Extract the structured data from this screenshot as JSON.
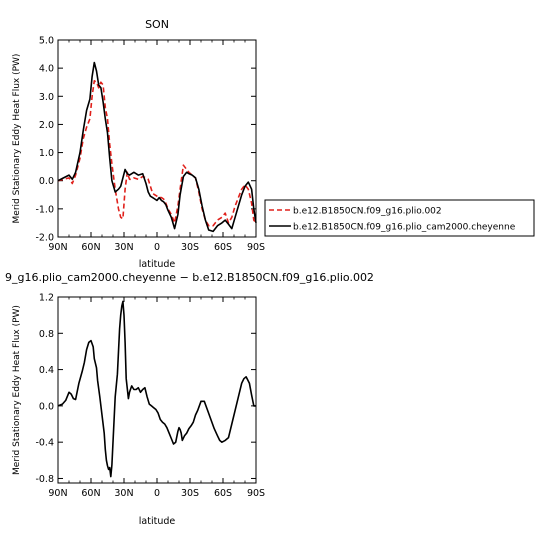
{
  "chart_data": [
    {
      "type": "line",
      "title": "SON",
      "xlabel": "latitude",
      "ylabel": "Merid Stationary Eddy Heat Flux (PW)",
      "xlim": [
        90,
        -90
      ],
      "ylim": [
        -2.0,
        5.0
      ],
      "xticks": [
        90,
        60,
        30,
        0,
        -30,
        -60,
        -90
      ],
      "xtick_labels": [
        "90N",
        "60N",
        "30N",
        "0",
        "30S",
        "60S",
        "90S"
      ],
      "yticks": [
        -2,
        -1,
        0,
        1,
        2,
        3,
        4,
        5
      ],
      "ytick_labels": [
        "-2.0",
        "-1.0",
        "0.0",
        "1.0",
        "2.0",
        "3.0",
        "4.0",
        "5.0"
      ],
      "legend_placement": "right",
      "series": [
        {
          "name": "b.e12.B1850CN.f09_g16.plio.002",
          "color": "#e0201b",
          "dash": "dashed",
          "x": [
            90,
            85,
            80,
            77,
            74,
            70,
            67,
            64,
            61,
            59,
            57,
            55,
            53,
            51,
            49,
            47,
            45,
            43,
            41,
            38,
            35,
            33,
            31,
            29,
            27,
            25,
            23,
            21,
            17,
            13,
            10,
            8,
            6,
            4,
            2,
            0,
            -2,
            -4,
            -6,
            -8,
            -10,
            -13,
            -16,
            -19,
            -21,
            -24,
            -27,
            -29,
            -32,
            -35,
            -38,
            -41,
            -44,
            -47,
            -51,
            -55,
            -59,
            -62,
            -65,
            -68,
            -71,
            -74,
            -77,
            -80,
            -83,
            -86,
            -88,
            -90
          ],
          "y": [
            0.0,
            0.05,
            0.1,
            -0.1,
            0.2,
            0.8,
            1.5,
            1.9,
            2.2,
            3.0,
            3.55,
            3.5,
            3.3,
            3.5,
            3.4,
            2.6,
            2.2,
            1.3,
            0.6,
            -0.3,
            -1.0,
            -1.3,
            -1.35,
            -0.3,
            0.3,
            0.05,
            0.05,
            0.1,
            0.05,
            0.15,
            0.1,
            0.05,
            -0.2,
            -0.45,
            -0.5,
            -0.55,
            -0.6,
            -0.6,
            -0.65,
            -0.8,
            -1.0,
            -1.2,
            -1.5,
            -0.9,
            -0.3,
            0.55,
            0.4,
            0.3,
            0.2,
            0.1,
            -0.4,
            -1.0,
            -1.4,
            -1.6,
            -1.6,
            -1.4,
            -1.3,
            -1.15,
            -1.5,
            -1.3,
            -0.9,
            -0.6,
            -0.3,
            -0.15,
            -0.3,
            -0.8,
            -1.4,
            -1.5
          ]
        },
        {
          "name": "b.e12.B1850CN.f09_g16.plio_cam2000.cheyenne",
          "color": "#000000",
          "dash": "solid",
          "x": [
            90,
            85,
            80,
            77,
            74,
            70,
            67,
            64,
            61,
            59,
            57,
            55,
            53,
            51,
            49,
            47,
            45,
            43,
            41,
            38,
            35,
            33,
            31,
            29,
            27,
            25,
            23,
            21,
            17,
            13,
            10,
            8,
            6,
            4,
            2,
            0,
            -2,
            -4,
            -6,
            -8,
            -10,
            -13,
            -16,
            -19,
            -21,
            -24,
            -27,
            -29,
            -32,
            -35,
            -38,
            -41,
            -44,
            -47,
            -51,
            -55,
            -59,
            -62,
            -65,
            -68,
            -71,
            -74,
            -77,
            -80,
            -83,
            -86,
            -88,
            -90
          ],
          "y": [
            0.0,
            0.1,
            0.2,
            0.05,
            0.3,
            1.0,
            1.8,
            2.5,
            2.9,
            3.7,
            4.2,
            3.9,
            3.4,
            3.3,
            2.8,
            2.2,
            1.7,
            0.8,
            0.0,
            -0.4,
            -0.3,
            -0.2,
            0.1,
            0.4,
            0.25,
            0.2,
            0.25,
            0.3,
            0.2,
            0.25,
            -0.1,
            -0.4,
            -0.55,
            -0.6,
            -0.65,
            -0.7,
            -0.6,
            -0.7,
            -0.75,
            -0.85,
            -1.05,
            -1.3,
            -1.7,
            -1.2,
            -0.5,
            0.15,
            0.3,
            0.25,
            0.2,
            0.1,
            -0.3,
            -0.9,
            -1.4,
            -1.75,
            -1.8,
            -1.6,
            -1.5,
            -1.4,
            -1.55,
            -1.7,
            -1.3,
            -0.9,
            -0.5,
            -0.2,
            -0.05,
            -0.3,
            -1.0,
            -1.5
          ]
        }
      ]
    },
    {
      "type": "line",
      "title": "9_g16.plio_cam2000.cheyenne − b.e12.B1850CN.f09_g16.plio.002",
      "xlabel": "latitude",
      "ylabel": "Merid Stationary Eddy Heat Flux (PW)",
      "xlim": [
        90,
        -90
      ],
      "ylim": [
        -0.85,
        1.2
      ],
      "xticks": [
        90,
        60,
        30,
        0,
        -30,
        -60,
        -90
      ],
      "xtick_labels": [
        "90N",
        "60N",
        "30N",
        "0",
        "30S",
        "60S",
        "90S"
      ],
      "yticks": [
        -0.8,
        -0.4,
        0.0,
        0.4,
        0.8,
        1.2
      ],
      "ytick_labels": [
        "-0.8",
        "-0.4",
        "0.0",
        "0.4",
        "0.8",
        "1.2"
      ],
      "series": [
        {
          "color": "#000000",
          "dash": "solid",
          "x": [
            90,
            86,
            83,
            80,
            78,
            76,
            74,
            71,
            68,
            66,
            64,
            62,
            60,
            58,
            57,
            55,
            54,
            52,
            50,
            48,
            47,
            46,
            45,
            44,
            43,
            42,
            41,
            40,
            39,
            38,
            36,
            35,
            34,
            33,
            32,
            31,
            30,
            29,
            28,
            26,
            25,
            23,
            21,
            19,
            17,
            15,
            13,
            11,
            9,
            7,
            5,
            3,
            1,
            -1,
            -3,
            -5,
            -7,
            -9,
            -11,
            -13,
            -15,
            -17,
            -19,
            -20,
            -21,
            -22,
            -23,
            -25,
            -27,
            -29,
            -31,
            -33,
            -35,
            -37,
            -40,
            -43,
            -46,
            -49,
            -52,
            -55,
            -57,
            -59,
            -62,
            -65,
            -68,
            -71,
            -74,
            -77,
            -79,
            -81,
            -84,
            -86,
            -88,
            -90
          ],
          "y": [
            0.0,
            0.02,
            0.06,
            0.15,
            0.13,
            0.08,
            0.07,
            0.25,
            0.38,
            0.48,
            0.62,
            0.7,
            0.72,
            0.65,
            0.52,
            0.42,
            0.28,
            0.1,
            -0.1,
            -0.3,
            -0.48,
            -0.6,
            -0.66,
            -0.7,
            -0.68,
            -0.78,
            -0.65,
            -0.4,
            -0.15,
            0.1,
            0.35,
            0.6,
            0.85,
            1.0,
            1.1,
            1.15,
            1.0,
            0.7,
            0.3,
            0.08,
            0.15,
            0.22,
            0.18,
            0.18,
            0.2,
            0.15,
            0.18,
            0.2,
            0.1,
            0.02,
            0.0,
            -0.02,
            -0.04,
            -0.08,
            -0.15,
            -0.18,
            -0.2,
            -0.24,
            -0.3,
            -0.36,
            -0.42,
            -0.4,
            -0.28,
            -0.24,
            -0.26,
            -0.3,
            -0.38,
            -0.33,
            -0.3,
            -0.25,
            -0.22,
            -0.18,
            -0.1,
            -0.05,
            0.05,
            0.05,
            -0.05,
            -0.15,
            -0.25,
            -0.33,
            -0.38,
            -0.4,
            -0.38,
            -0.35,
            -0.2,
            -0.05,
            0.1,
            0.25,
            0.3,
            0.32,
            0.25,
            0.12,
            0.0,
            0.0
          ]
        }
      ]
    }
  ]
}
